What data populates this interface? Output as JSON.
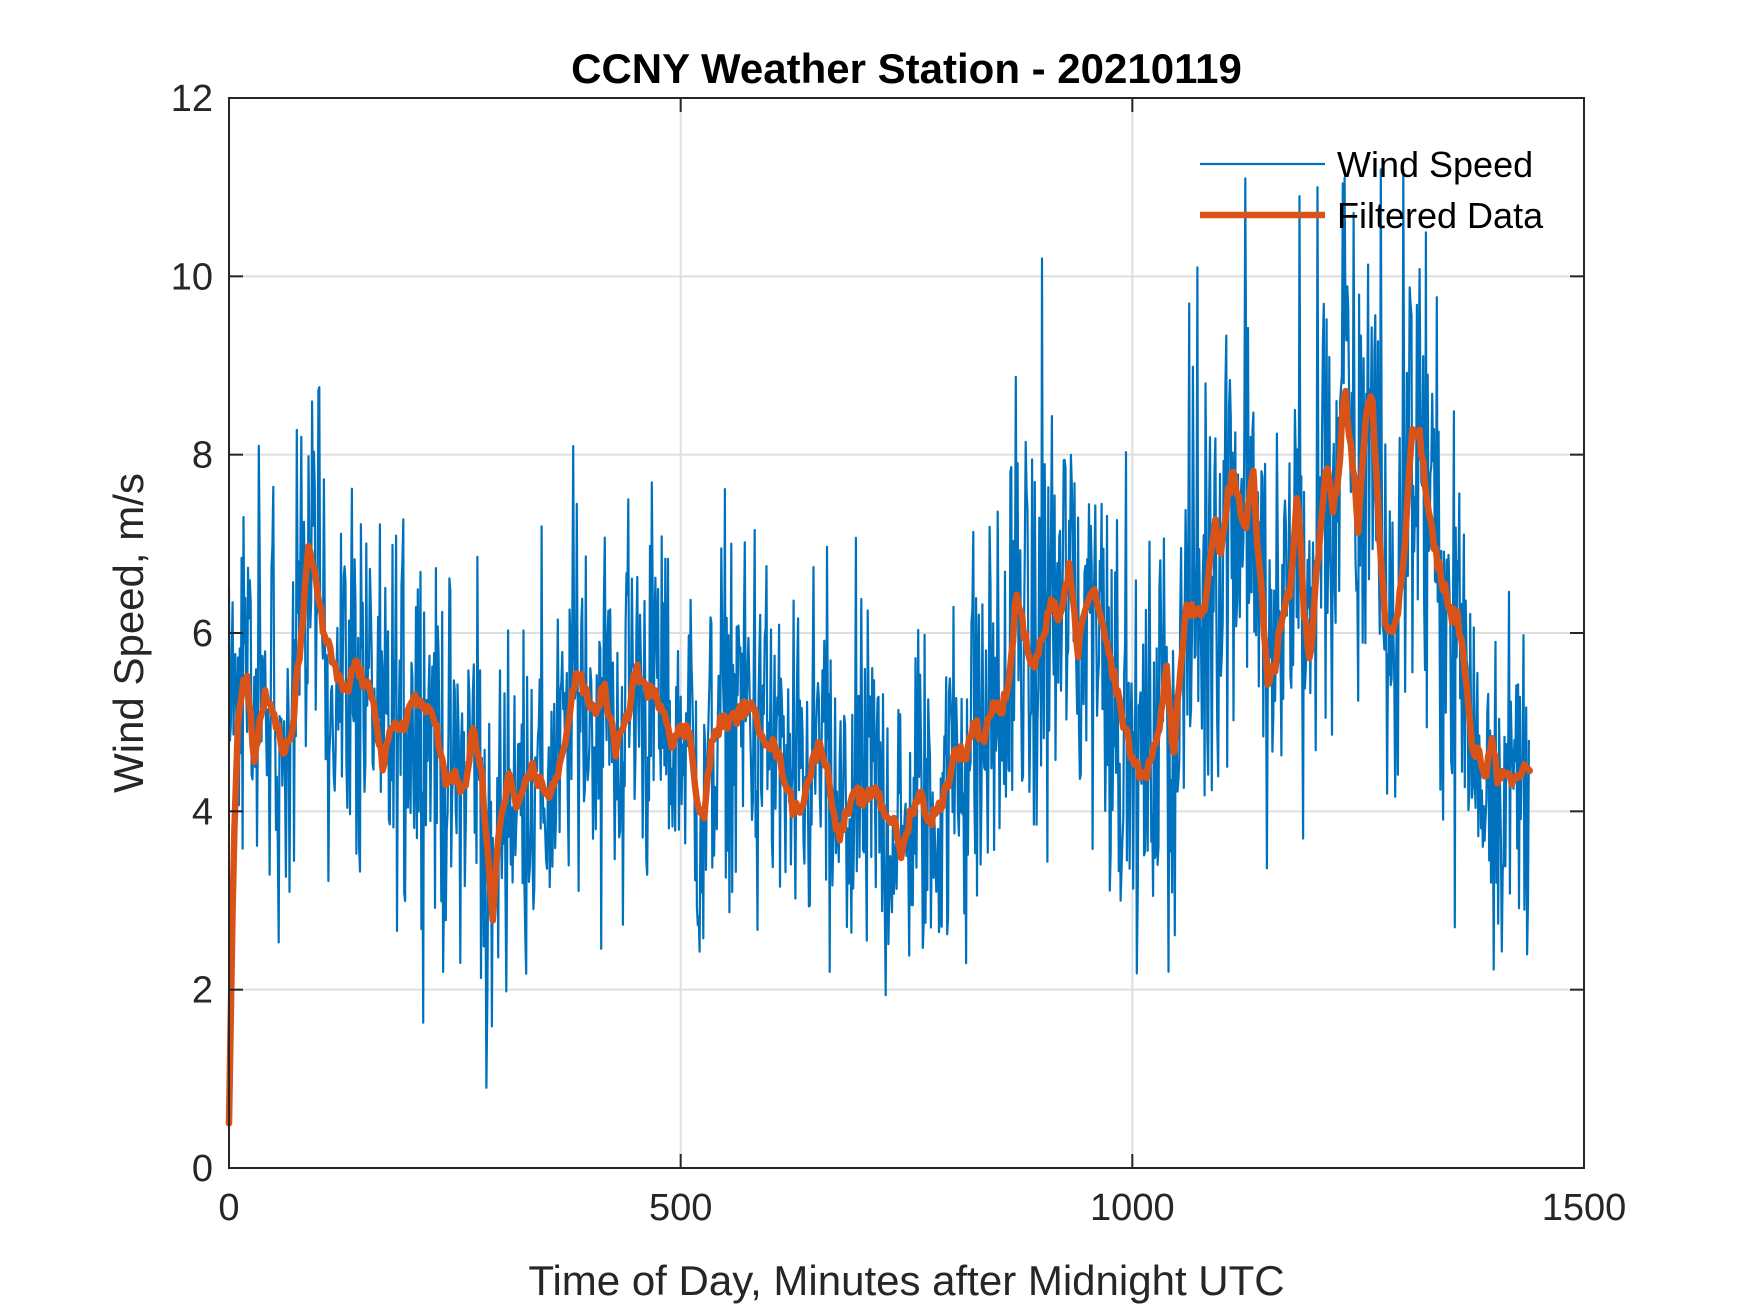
{
  "chart_data": {
    "type": "line",
    "title": "CCNY Weather Station - 20210119",
    "xlabel": "Time of Day, Minutes after Midnight UTC",
    "ylabel": "Wind Speed, m/s",
    "xlim": [
      0,
      1500
    ],
    "ylim": [
      0,
      12
    ],
    "xticks": [
      0,
      500,
      1000,
      1500
    ],
    "xtick_labels": [
      "0",
      "500",
      "1000",
      "1500"
    ],
    "yticks": [
      0,
      2,
      4,
      6,
      8,
      10,
      12
    ],
    "ytick_labels": [
      "0",
      "2",
      "4",
      "6",
      "8",
      "10",
      "12"
    ],
    "grid": true,
    "legend": {
      "placement": "top-right",
      "entries": [
        {
          "label": "Wind Speed",
          "color": "#0072BD"
        },
        {
          "label": "Filtered Data",
          "color": "#D95319"
        }
      ]
    },
    "series": [
      {
        "name": "Wind Speed",
        "color": "#0072BD",
        "sampling": "1 sample per minute, minutes 0-1439 (noisy raw signal; individual samples not legible)",
        "notable_points": [
          {
            "x": 0,
            "y": 6.5
          },
          {
            "x": 16,
            "y": 7.3
          },
          {
            "x": 33,
            "y": 8.1
          },
          {
            "x": 80,
            "y": 8.2
          },
          {
            "x": 285,
            "y": 0.9
          },
          {
            "x": 442,
            "y": 7.5
          },
          {
            "x": 665,
            "y": 2.2
          },
          {
            "x": 900,
            "y": 10.2
          },
          {
            "x": 1040,
            "y": 2.2
          },
          {
            "x": 1072,
            "y": 10.1
          },
          {
            "x": 1125,
            "y": 11.1
          },
          {
            "x": 1185,
            "y": 10.9
          },
          {
            "x": 1205,
            "y": 11.0
          },
          {
            "x": 1275,
            "y": 11.2
          },
          {
            "x": 1300,
            "y": 11.2
          },
          {
            "x": 1357,
            "y": 2.7
          },
          {
            "x": 1439,
            "y": 4.8
          }
        ],
        "envelope": {
          "typical_low": 3.0,
          "typical_high": 7.0,
          "max": 11.2,
          "min": 0.9
        }
      },
      {
        "name": "Filtered Data",
        "color": "#D95319",
        "x": [
          0,
          5,
          10,
          15,
          20,
          28,
          35,
          40,
          50,
          60,
          70,
          80,
          88,
          95,
          105,
          120,
          130,
          140,
          150,
          160,
          170,
          180,
          195,
          205,
          215,
          225,
          240,
          250,
          260,
          270,
          280,
          287,
          292,
          300,
          310,
          320,
          335,
          345,
          355,
          365,
          375,
          385,
          395,
          405,
          415,
          428,
          440,
          450,
          460,
          470,
          480,
          490,
          500,
          510,
          520,
          525,
          535,
          545,
          555,
          565,
          575,
          585,
          595,
          605,
          615,
          625,
          635,
          645,
          655,
          665,
          675,
          685,
          695,
          705,
          715,
          725,
          735,
          745,
          755,
          765,
          775,
          785,
          795,
          805,
          815,
          825,
          835,
          845,
          855,
          865,
          872,
          880,
          890,
          900,
          910,
          920,
          930,
          940,
          950,
          960,
          970,
          980,
          990,
          1000,
          1010,
          1020,
          1030,
          1038,
          1045,
          1050,
          1060,
          1070,
          1080,
          1085,
          1092,
          1098,
          1105,
          1112,
          1118,
          1125,
          1133,
          1140,
          1150,
          1158,
          1165,
          1175,
          1183,
          1190,
          1197,
          1205,
          1215,
          1222,
          1228,
          1235,
          1243,
          1250,
          1258,
          1265,
          1272,
          1280,
          1288,
          1295,
          1302,
          1310,
          1318,
          1325,
          1333,
          1343,
          1353,
          1360,
          1368,
          1376,
          1385,
          1392,
          1398,
          1405,
          1412,
          1420,
          1428,
          1435,
          1440
        ],
        "y": [
          0.5,
          3.5,
          5.0,
          5.4,
          5.5,
          4.6,
          5.0,
          5.3,
          5.1,
          4.6,
          4.9,
          6.0,
          6.9,
          6.7,
          6.0,
          5.5,
          5.3,
          5.7,
          5.4,
          5.3,
          4.5,
          4.9,
          5.0,
          5.3,
          5.1,
          5.2,
          4.3,
          4.4,
          4.2,
          4.9,
          4.4,
          3.4,
          2.8,
          3.9,
          4.4,
          4.0,
          4.5,
          4.3,
          4.2,
          4.4,
          5.0,
          5.6,
          5.3,
          5.1,
          5.4,
          4.7,
          5.0,
          5.6,
          5.4,
          5.3,
          5.2,
          4.8,
          4.9,
          4.9,
          4.0,
          3.9,
          4.8,
          5.0,
          5.0,
          5.1,
          5.2,
          5.0,
          4.8,
          4.7,
          4.4,
          4.0,
          4.1,
          4.5,
          4.8,
          4.3,
          3.7,
          4.0,
          4.2,
          4.1,
          4.3,
          4.0,
          3.9,
          3.5,
          4.0,
          4.2,
          3.9,
          4.0,
          4.3,
          4.7,
          4.6,
          5.0,
          4.8,
          5.2,
          5.1,
          5.6,
          6.5,
          6.0,
          5.6,
          5.9,
          6.3,
          6.2,
          6.7,
          5.8,
          6.4,
          6.4,
          5.9,
          5.5,
          5.0,
          4.6,
          4.4,
          4.5,
          5.0,
          5.6,
          4.6,
          5.2,
          6.3,
          6.2,
          6.2,
          6.8,
          7.2,
          6.9,
          7.5,
          7.8,
          7.5,
          7.1,
          7.9,
          6.8,
          5.5,
          5.6,
          6.2,
          6.5,
          7.6,
          6.2,
          5.7,
          6.8,
          8.0,
          7.4,
          7.7,
          8.8,
          8.0,
          7.2,
          8.4,
          8.7,
          7.4,
          6.1,
          6.0,
          6.3,
          7.0,
          8.3,
          8.2,
          7.6,
          7.0,
          6.6,
          6.2,
          6.2,
          5.6,
          4.7,
          4.6,
          4.4,
          4.9,
          4.3,
          4.4,
          4.3,
          4.4,
          4.5,
          4.5
        ]
      }
    ]
  }
}
